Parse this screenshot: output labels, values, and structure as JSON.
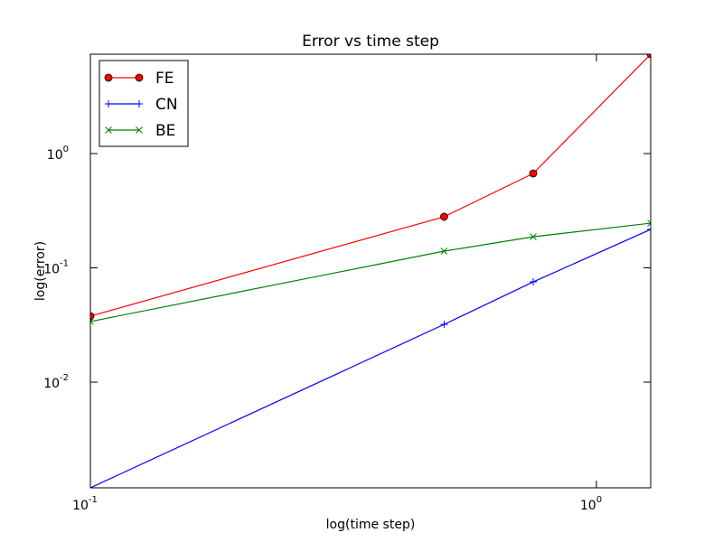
{
  "chart_data": {
    "type": "line",
    "title": "Error vs time step",
    "xlabel": "log(time step)",
    "ylabel": "log(error)",
    "x": [
      0.1,
      0.5,
      0.75,
      1.28
    ],
    "xscale": "log",
    "yscale": "log",
    "xlim": [
      0.1,
      1.28
    ],
    "ylim": [
      0.00119,
      7.4
    ],
    "xticks": [
      {
        "value": 0.1,
        "label": "10",
        "exponent": "-1"
      },
      {
        "value": 1,
        "label": "10",
        "exponent": "0"
      }
    ],
    "yticks": [
      {
        "value": 0.01,
        "label": "10",
        "exponent": "-2"
      },
      {
        "value": 0.1,
        "label": "10",
        "exponent": "-1"
      },
      {
        "value": 1,
        "label": "10",
        "exponent": "0"
      }
    ],
    "legend": "upper left",
    "series": [
      {
        "name": "FE",
        "color": "#ff0000",
        "marker": "o",
        "values": [
          0.0378,
          0.28,
          0.67,
          7.4
        ]
      },
      {
        "name": "CN",
        "color": "#0000ff",
        "marker": "+",
        "values": [
          0.00119,
          0.032,
          0.0754,
          0.217
        ]
      },
      {
        "name": "BE",
        "color": "#008000",
        "marker": "x",
        "values": [
          0.0339,
          0.14,
          0.187,
          0.246
        ]
      }
    ]
  }
}
